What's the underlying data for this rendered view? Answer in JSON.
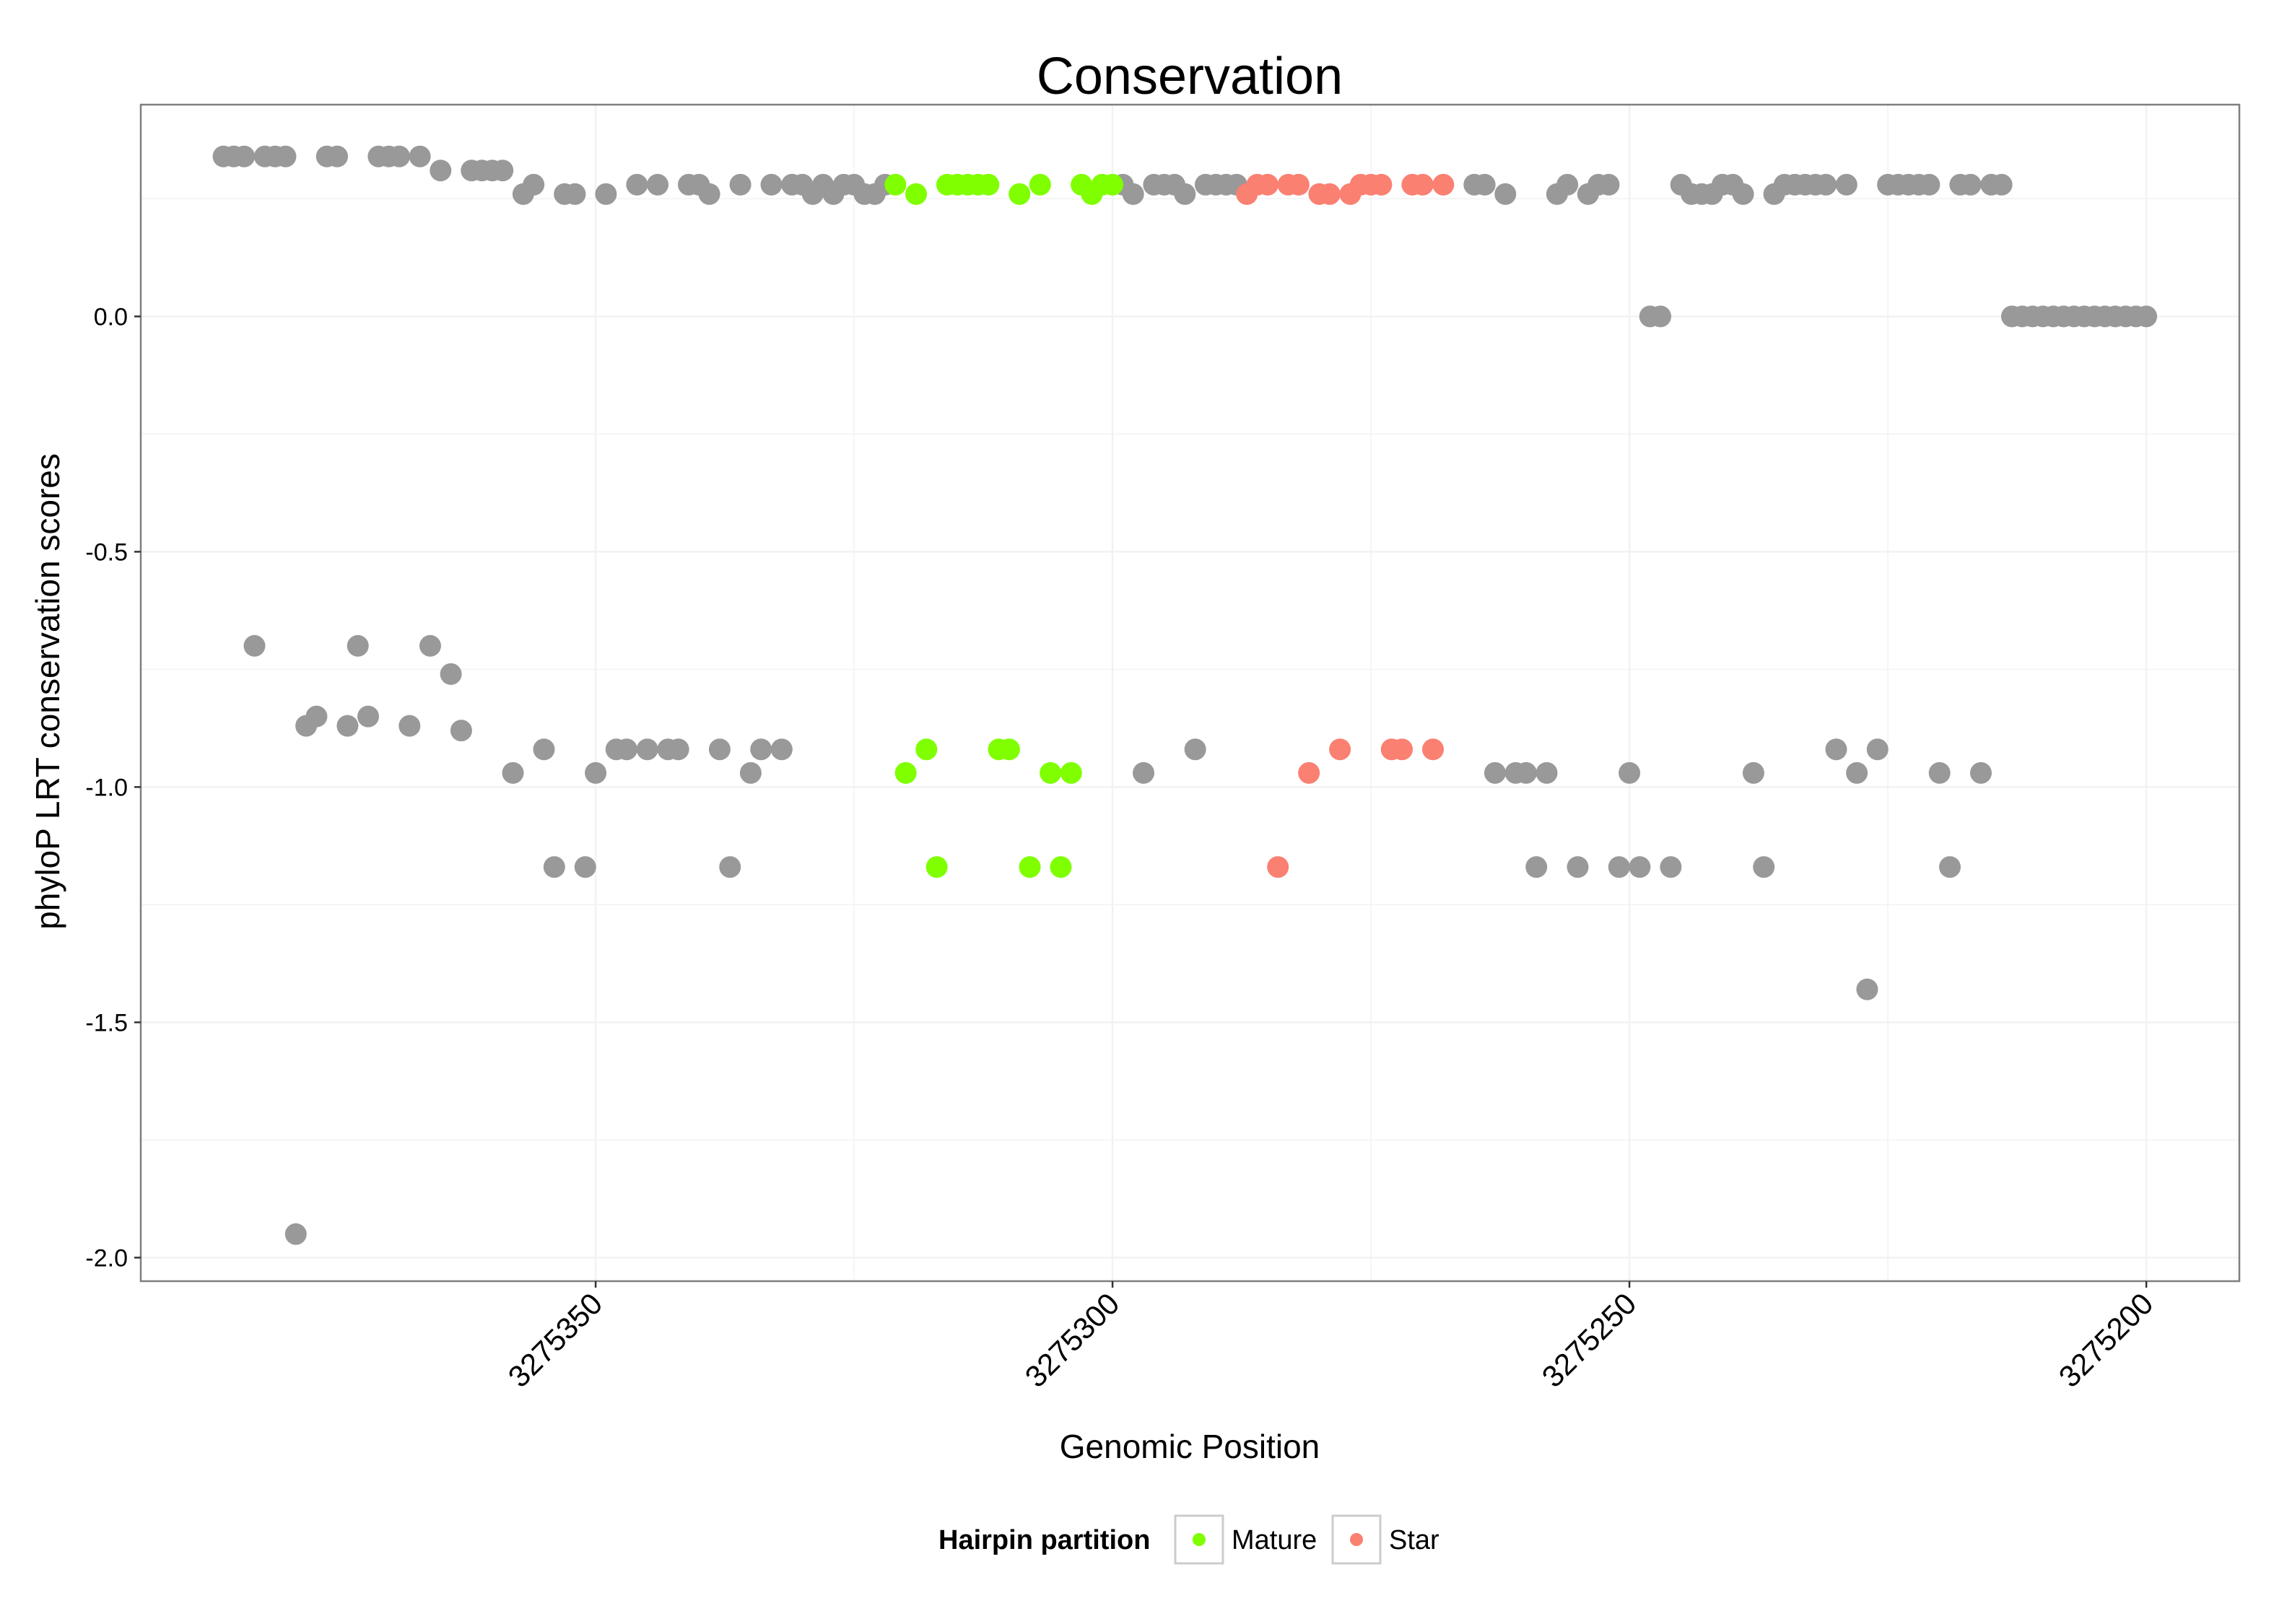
{
  "chart_data": {
    "type": "scatter",
    "title": "Conservation",
    "xlabel": "Genomic Position",
    "ylabel": "phyloP LRT conservation scores",
    "xlim": [
      3275394,
      3275191
    ],
    "x_reversed": true,
    "ylim": [
      -2.05,
      0.45
    ],
    "x_ticks": [
      3275350,
      3275300,
      3275250,
      3275200
    ],
    "x_tick_labels": [
      "3275350",
      "3275300",
      "3275250",
      "3275200"
    ],
    "y_ticks": [
      0.0,
      -0.5,
      -1.0,
      -1.5,
      -2.0
    ],
    "y_tick_labels": [
      "0.0",
      "-0.5",
      "-1.0",
      "-1.5",
      "-2.0"
    ],
    "grid": true,
    "legend": {
      "title": "Hairpin partition",
      "placement": "bottom",
      "entries": [
        {
          "label": "Mature",
          "color": "#7FFF00"
        },
        {
          "label": "Star",
          "color": "#FA8072"
        }
      ]
    },
    "colors": {
      "Other": "#999999",
      "Mature": "#7FFF00",
      "Star": "#FA8072"
    },
    "series": [
      {
        "name": "Other",
        "points": [
          [
            3275386,
            0.34
          ],
          [
            3275385,
            0.34
          ],
          [
            3275384,
            0.34
          ],
          [
            3275383,
            -0.7
          ],
          [
            3275382,
            0.34
          ],
          [
            3275381,
            0.34
          ],
          [
            3275380,
            0.34
          ],
          [
            3275379,
            -1.95
          ],
          [
            3275378,
            -0.87
          ],
          [
            3275377,
            -0.85
          ],
          [
            3275376,
            0.34
          ],
          [
            3275375,
            0.34
          ],
          [
            3275374,
            -0.87
          ],
          [
            3275373,
            -0.7
          ],
          [
            3275372,
            -0.85
          ],
          [
            3275371,
            0.34
          ],
          [
            3275370,
            0.34
          ],
          [
            3275369,
            0.34
          ],
          [
            3275368,
            -0.87
          ],
          [
            3275367,
            0.34
          ],
          [
            3275366,
            -0.7
          ],
          [
            3275365,
            0.31
          ],
          [
            3275364,
            -0.76
          ],
          [
            3275363,
            -0.88
          ],
          [
            3275362,
            0.31
          ],
          [
            3275361,
            0.31
          ],
          [
            3275360,
            0.31
          ],
          [
            3275359,
            0.31
          ],
          [
            3275358,
            -0.97
          ],
          [
            3275357,
            0.26
          ],
          [
            3275356,
            0.28
          ],
          [
            3275355,
            -0.92
          ],
          [
            3275354,
            -1.17
          ],
          [
            3275353,
            0.26
          ],
          [
            3275352,
            0.26
          ],
          [
            3275351,
            -1.17
          ],
          [
            3275350,
            -0.97
          ],
          [
            3275349,
            0.26
          ],
          [
            3275348,
            -0.92
          ],
          [
            3275347,
            -0.92
          ],
          [
            3275346,
            0.28
          ],
          [
            3275345,
            -0.92
          ],
          [
            3275344,
            0.28
          ],
          [
            3275343,
            -0.92
          ],
          [
            3275342,
            -0.92
          ],
          [
            3275341,
            0.28
          ],
          [
            3275340,
            0.28
          ],
          [
            3275339,
            0.26
          ],
          [
            3275338,
            -0.92
          ],
          [
            3275337,
            -1.17
          ],
          [
            3275336,
            0.28
          ],
          [
            3275335,
            -0.97
          ],
          [
            3275334,
            -0.92
          ],
          [
            3275333,
            0.28
          ],
          [
            3275332,
            -0.92
          ],
          [
            3275331,
            0.28
          ],
          [
            3275330,
            0.28
          ],
          [
            3275329,
            0.26
          ],
          [
            3275328,
            0.28
          ],
          [
            3275327,
            0.26
          ],
          [
            3275326,
            0.28
          ],
          [
            3275325,
            0.28
          ],
          [
            3275324,
            0.26
          ],
          [
            3275323,
            0.26
          ],
          [
            3275322,
            0.28
          ],
          [
            3275299,
            0.28
          ],
          [
            3275298,
            0.26
          ],
          [
            3275297,
            -0.97
          ],
          [
            3275296,
            0.28
          ],
          [
            3275295,
            0.28
          ],
          [
            3275294,
            0.28
          ],
          [
            3275293,
            0.26
          ],
          [
            3275292,
            -0.92
          ],
          [
            3275291,
            0.28
          ],
          [
            3275290,
            0.28
          ],
          [
            3275289,
            0.28
          ],
          [
            3275288,
            0.28
          ],
          [
            3275265,
            0.28
          ],
          [
            3275264,
            0.28
          ],
          [
            3275263,
            -0.97
          ],
          [
            3275262,
            0.26
          ],
          [
            3275261,
            -0.97
          ],
          [
            3275260,
            -0.97
          ],
          [
            3275259,
            -1.17
          ],
          [
            3275258,
            -0.97
          ],
          [
            3275257,
            0.26
          ],
          [
            3275256,
            0.28
          ],
          [
            3275255,
            -1.17
          ],
          [
            3275254,
            0.26
          ],
          [
            3275253,
            0.28
          ],
          [
            3275252,
            0.28
          ],
          [
            3275251,
            -1.17
          ],
          [
            3275250,
            -0.97
          ],
          [
            3275249,
            -1.17
          ],
          [
            3275248,
            0.0
          ],
          [
            3275247,
            0.0
          ],
          [
            3275246,
            -1.17
          ],
          [
            3275245,
            0.28
          ],
          [
            3275244,
            0.26
          ],
          [
            3275243,
            0.26
          ],
          [
            3275242,
            0.26
          ],
          [
            3275241,
            0.28
          ],
          [
            3275240,
            0.28
          ],
          [
            3275239,
            0.26
          ],
          [
            3275238,
            -0.97
          ],
          [
            3275237,
            -1.17
          ],
          [
            3275236,
            0.26
          ],
          [
            3275235,
            0.28
          ],
          [
            3275234,
            0.28
          ],
          [
            3275233,
            0.28
          ],
          [
            3275232,
            0.28
          ],
          [
            3275231,
            0.28
          ],
          [
            3275230,
            -0.92
          ],
          [
            3275229,
            0.28
          ],
          [
            3275228,
            -0.97
          ],
          [
            3275227,
            -1.43
          ],
          [
            3275226,
            -0.92
          ],
          [
            3275225,
            0.28
          ],
          [
            3275224,
            0.28
          ],
          [
            3275223,
            0.28
          ],
          [
            3275222,
            0.28
          ],
          [
            3275221,
            0.28
          ],
          [
            3275220,
            -0.97
          ],
          [
            3275219,
            -1.17
          ],
          [
            3275218,
            0.28
          ],
          [
            3275217,
            0.28
          ],
          [
            3275216,
            -0.97
          ],
          [
            3275215,
            0.28
          ],
          [
            3275214,
            0.28
          ],
          [
            3275213,
            0.0
          ],
          [
            3275212,
            0.0
          ],
          [
            3275211,
            0.0
          ],
          [
            3275210,
            0.0
          ],
          [
            3275209,
            0.0
          ],
          [
            3275208,
            0.0
          ],
          [
            3275207,
            0.0
          ],
          [
            3275206,
            0.0
          ],
          [
            3275205,
            0.0
          ],
          [
            3275204,
            0.0
          ],
          [
            3275203,
            0.0
          ],
          [
            3275202,
            0.0
          ],
          [
            3275201,
            0.0
          ],
          [
            3275200,
            0.0
          ]
        ]
      },
      {
        "name": "Mature",
        "points": [
          [
            3275321,
            0.28
          ],
          [
            3275320,
            -0.97
          ],
          [
            3275319,
            0.26
          ],
          [
            3275318,
            -0.92
          ],
          [
            3275317,
            -1.17
          ],
          [
            3275316,
            0.28
          ],
          [
            3275315,
            0.28
          ],
          [
            3275314,
            0.28
          ],
          [
            3275313,
            0.28
          ],
          [
            3275312,
            0.28
          ],
          [
            3275311,
            -0.92
          ],
          [
            3275310,
            -0.92
          ],
          [
            3275309,
            0.26
          ],
          [
            3275308,
            -1.17
          ],
          [
            3275307,
            0.28
          ],
          [
            3275306,
            -0.97
          ],
          [
            3275305,
            -1.17
          ],
          [
            3275304,
            -0.97
          ],
          [
            3275303,
            0.28
          ],
          [
            3275302,
            0.26
          ],
          [
            3275301,
            0.28
          ],
          [
            3275300,
            0.28
          ]
        ]
      },
      {
        "name": "Star",
        "points": [
          [
            3275287,
            0.26
          ],
          [
            3275286,
            0.28
          ],
          [
            3275285,
            0.28
          ],
          [
            3275284,
            -1.17
          ],
          [
            3275283,
            0.28
          ],
          [
            3275282,
            0.28
          ],
          [
            3275281,
            -0.97
          ],
          [
            3275280,
            0.26
          ],
          [
            3275279,
            0.26
          ],
          [
            3275278,
            -0.92
          ],
          [
            3275277,
            0.26
          ],
          [
            3275276,
            0.28
          ],
          [
            3275275,
            0.28
          ],
          [
            3275274,
            0.28
          ],
          [
            3275273,
            -0.92
          ],
          [
            3275272,
            -0.92
          ],
          [
            3275271,
            0.28
          ],
          [
            3275270,
            0.28
          ],
          [
            3275269,
            -0.92
          ],
          [
            3275268,
            0.28
          ]
        ]
      }
    ]
  }
}
